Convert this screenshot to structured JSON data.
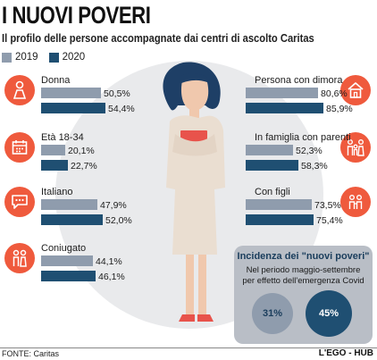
{
  "header": {
    "title": "I NUOVI POVERI",
    "subtitle": "Il profilo delle persone accompagnate dai centri di ascolto Caritas"
  },
  "colors": {
    "y2019": "#8f9cad",
    "y2020": "#1f4f72",
    "accent": "#ef5a3d",
    "background_circle": "#e9eaec"
  },
  "legend": {
    "y2019": "2019",
    "y2020": "2020"
  },
  "icons": {
    "left": [
      "woman-icon",
      "calendar-icon",
      "speech-bubble-icon",
      "couple-icon"
    ],
    "right": [
      "house-icon",
      "family-icon",
      "children-icon"
    ]
  },
  "chart_data": {
    "type": "bar",
    "series": [
      {
        "name": "2019"
      },
      {
        "name": "2020"
      }
    ],
    "groups": [
      {
        "category": "Donna",
        "side": "left",
        "values": [
          50.5,
          54.4
        ],
        "labels": [
          "50,5%",
          "54,4%"
        ]
      },
      {
        "category": "Età 18-34",
        "side": "left",
        "values": [
          20.1,
          22.7
        ],
        "labels": [
          "20,1%",
          "22,7%"
        ]
      },
      {
        "category": "Italiano",
        "side": "left",
        "values": [
          47.9,
          52.0
        ],
        "labels": [
          "47,9%",
          "52,0%"
        ]
      },
      {
        "category": "Coniugato",
        "side": "left",
        "values": [
          44.1,
          46.1
        ],
        "labels": [
          "44,1%",
          "46,1%"
        ]
      },
      {
        "category": "Persona con dimora",
        "side": "right",
        "values": [
          80.6,
          85.9
        ],
        "labels": [
          "80,6%",
          "85,9%"
        ]
      },
      {
        "category": "In famiglia con parenti",
        "side": "right",
        "values": [
          52.3,
          58.3
        ],
        "labels": [
          "52,3%",
          "58,3%"
        ]
      },
      {
        "category": "Con figli",
        "side": "right",
        "values": [
          73.5,
          75.4
        ],
        "labels": [
          "73,5%",
          "75,4%"
        ]
      }
    ]
  },
  "incidence": {
    "title": "Incidenza dei \"nuovi poveri\"",
    "subtitle_line1": "Nel periodo maggio-settembre",
    "subtitle_line2": "per effetto dell'emergenza Covid",
    "values": [
      31,
      45
    ],
    "labels": [
      "31%",
      "45%"
    ]
  },
  "footer": {
    "source": "FONTE: Caritas",
    "credit": "L'EGO - HUB"
  }
}
